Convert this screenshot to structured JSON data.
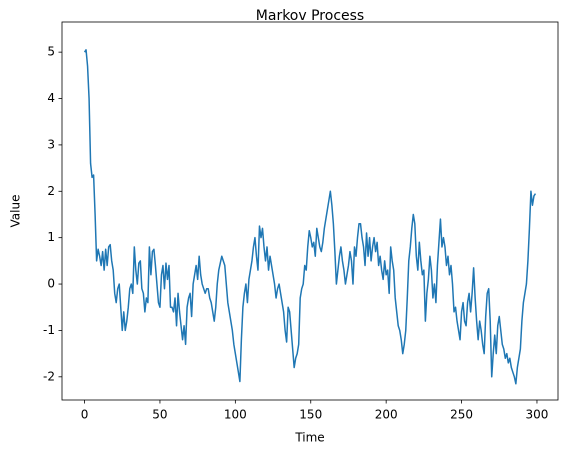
{
  "chart_data": {
    "type": "line",
    "title": "Markov Process",
    "x_label": "Time",
    "y_label": "Value",
    "x": [
      0,
      1,
      2,
      3,
      4,
      5,
      6,
      7,
      8,
      9,
      10,
      11,
      12,
      13,
      14,
      15,
      16,
      17,
      18,
      19,
      20,
      21,
      22,
      23,
      24,
      25,
      26,
      27,
      28,
      29,
      30,
      31,
      32,
      33,
      34,
      35,
      36,
      37,
      38,
      39,
      40,
      41,
      42,
      43,
      44,
      45,
      46,
      47,
      48,
      49,
      50,
      51,
      52,
      53,
      54,
      55,
      56,
      57,
      58,
      59,
      60,
      61,
      62,
      63,
      64,
      65,
      66,
      67,
      68,
      69,
      70,
      71,
      72,
      73,
      74,
      75,
      76,
      77,
      78,
      79,
      80,
      81,
      82,
      83,
      84,
      85,
      86,
      87,
      88,
      89,
      90,
      91,
      92,
      93,
      94,
      95,
      96,
      97,
      98,
      99,
      100,
      101,
      102,
      103,
      104,
      105,
      106,
      107,
      108,
      109,
      110,
      111,
      112,
      113,
      114,
      115,
      116,
      117,
      118,
      119,
      120,
      121,
      122,
      123,
      124,
      125,
      126,
      127,
      128,
      129,
      130,
      131,
      132,
      133,
      134,
      135,
      136,
      137,
      138,
      139,
      140,
      141,
      142,
      143,
      144,
      145,
      146,
      147,
      148,
      149,
      150,
      151,
      152,
      153,
      154,
      155,
      156,
      157,
      158,
      159,
      160,
      161,
      162,
      163,
      164,
      165,
      166,
      167,
      168,
      169,
      170,
      171,
      172,
      173,
      174,
      175,
      176,
      177,
      178,
      179,
      180,
      181,
      182,
      183,
      184,
      185,
      186,
      187,
      188,
      189,
      190,
      191,
      192,
      193,
      194,
      195,
      196,
      197,
      198,
      199,
      200,
      201,
      202,
      203,
      204,
      205,
      206,
      207,
      208,
      209,
      210,
      211,
      212,
      213,
      214,
      215,
      216,
      217,
      218,
      219,
      220,
      221,
      222,
      223,
      224,
      225,
      226,
      227,
      228,
      229,
      230,
      231,
      232,
      233,
      234,
      235,
      236,
      237,
      238,
      239,
      240,
      241,
      242,
      243,
      244,
      245,
      246,
      247,
      248,
      249,
      250,
      251,
      252,
      253,
      254,
      255,
      256,
      257,
      258,
      259,
      260,
      261,
      262,
      263,
      264,
      265,
      266,
      267,
      268,
      269,
      270,
      271,
      272,
      273,
      274,
      275,
      276,
      277,
      278,
      279,
      280,
      281,
      282,
      283,
      284,
      285,
      286,
      287,
      288,
      289,
      290,
      291,
      292,
      293,
      294,
      295,
      296,
      297,
      298,
      299
    ],
    "series": [
      {
        "name": "Markov Process",
        "color": "#1f77b4",
        "values": [
          5.0,
          5.05,
          4.7,
          4.0,
          2.6,
          2.3,
          2.35,
          1.5,
          0.5,
          0.75,
          0.6,
          0.4,
          0.7,
          0.3,
          0.75,
          0.4,
          0.8,
          0.85,
          0.5,
          0.3,
          -0.2,
          -0.4,
          -0.1,
          0.0,
          -0.5,
          -1.0,
          -0.6,
          -1.0,
          -0.8,
          -0.5,
          -0.1,
          0.0,
          -0.2,
          0.8,
          0.3,
          0.0,
          0.45,
          0.5,
          -0.1,
          -0.2,
          -0.6,
          -0.3,
          -0.4,
          0.8,
          0.2,
          0.7,
          0.75,
          0.4,
          0.0,
          -0.4,
          -0.5,
          0.2,
          0.4,
          -0.1,
          0.45,
          0.1,
          0.4,
          -0.5,
          -0.5,
          -0.6,
          -0.3,
          -0.9,
          -0.2,
          -0.6,
          -0.9,
          -1.2,
          -0.9,
          -1.3,
          -0.5,
          -0.3,
          -0.2,
          -0.7,
          0.0,
          0.2,
          0.4,
          0.1,
          0.6,
          0.2,
          0.0,
          -0.1,
          -0.2,
          -0.1,
          -0.1,
          -0.3,
          -0.4,
          -0.6,
          -0.8,
          -0.5,
          0.0,
          0.3,
          0.45,
          0.6,
          0.5,
          0.4,
          0.0,
          -0.4,
          -0.6,
          -0.8,
          -1.0,
          -1.3,
          -1.5,
          -1.7,
          -1.9,
          -2.1,
          -1.2,
          -0.5,
          -0.2,
          0.0,
          -0.4,
          0.1,
          0.3,
          0.5,
          0.8,
          1.0,
          0.6,
          0.3,
          1.25,
          1.0,
          1.2,
          0.8,
          0.5,
          0.8,
          0.3,
          0.6,
          0.4,
          0.2,
          0.0,
          -0.3,
          -0.1,
          0.0,
          -0.2,
          -0.4,
          -0.6,
          -1.0,
          -1.25,
          -0.5,
          -0.6,
          -1.0,
          -1.4,
          -1.8,
          -1.6,
          -1.5,
          -1.3,
          -0.3,
          -0.1,
          0.0,
          0.4,
          0.3,
          0.8,
          1.15,
          1.0,
          0.8,
          0.9,
          0.6,
          1.2,
          1.0,
          0.8,
          0.7,
          0.9,
          1.2,
          1.4,
          1.6,
          1.8,
          2.0,
          1.7,
          1.3,
          0.7,
          0.0,
          0.3,
          0.6,
          0.8,
          0.5,
          0.3,
          0.0,
          0.2,
          0.4,
          0.7,
          0.5,
          0.0,
          0.8,
          0.6,
          1.0,
          1.3,
          1.3,
          1.0,
          0.8,
          0.4,
          1.1,
          0.6,
          1.0,
          0.5,
          0.8,
          1.0,
          0.7,
          0.9,
          0.4,
          0.6,
          0.3,
          0.1,
          0.5,
          0.2,
          0.3,
          -0.2,
          0.8,
          0.5,
          0.3,
          -0.3,
          -0.6,
          -0.9,
          -1.0,
          -1.2,
          -1.5,
          -1.3,
          -1.0,
          -0.3,
          0.5,
          0.8,
          1.2,
          1.5,
          1.3,
          0.6,
          0.3,
          0.9,
          0.5,
          0.2,
          0.3,
          -0.8,
          -0.2,
          0.1,
          0.6,
          0.3,
          -0.3,
          0.0,
          -0.4,
          0.4,
          0.9,
          1.4,
          0.8,
          1.0,
          0.8,
          0.4,
          0.6,
          0.2,
          0.4,
          0.0,
          -0.6,
          -0.5,
          -0.8,
          -1.0,
          -1.2,
          -0.6,
          -0.4,
          -0.8,
          -0.9,
          -0.4,
          -0.2,
          -0.6,
          -0.2,
          0.35,
          -0.3,
          -0.8,
          -1.2,
          -0.8,
          -1.0,
          -1.3,
          -1.5,
          -0.7,
          -0.2,
          -0.1,
          -0.8,
          -2.0,
          -1.5,
          -1.1,
          -1.5,
          -0.9,
          -0.7,
          -1.0,
          -1.3,
          -1.4,
          -1.6,
          -1.5,
          -1.7,
          -1.6,
          -1.8,
          -1.9,
          -2.0,
          -2.15,
          -1.8,
          -1.6,
          -1.4,
          -0.8,
          -0.4,
          -0.2,
          0.0,
          0.5,
          1.2,
          2.0,
          1.7,
          1.9,
          1.95
        ]
      }
    ],
    "xlim": [
      -14.95,
      313.95
    ],
    "xticks": [
      0,
      50,
      100,
      150,
      200,
      250,
      300
    ],
    "ylim": [
      -2.5,
      5.65
    ],
    "yticks": [
      -2,
      -1,
      0,
      1,
      2,
      3,
      4,
      5
    ]
  }
}
